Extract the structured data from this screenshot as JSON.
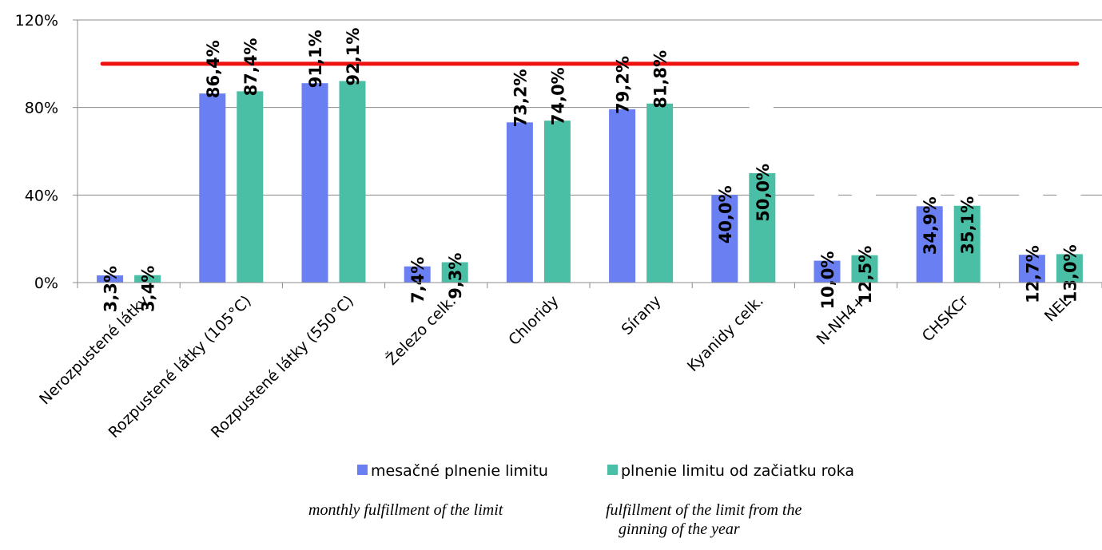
{
  "chart_data": {
    "type": "bar",
    "categories": [
      "Nerozpustené látky",
      "Rozpustené látky (105°C)",
      "Rozpustené látky (550°C)",
      "Železo celk.",
      "Chloridy",
      "Sírany",
      "Kyanidy celk.",
      "N-NH4+",
      "CHSKCr",
      "NEL"
    ],
    "series": [
      {
        "name": "mesačné plnenie limitu",
        "color": "#6A7FF2",
        "values": [
          3.3,
          86.4,
          91.1,
          7.4,
          73.2,
          79.2,
          40.0,
          10.0,
          34.9,
          12.7
        ],
        "labels": [
          "3,3%",
          "86,4%",
          "91,1%",
          "7,4%",
          "73,2%",
          "79,2%",
          "40,0%",
          "10,0%",
          "34,9%",
          "12,7%"
        ]
      },
      {
        "name": "plnenie limitu od začiatku roka",
        "color": "#4BBFA5",
        "values": [
          3.4,
          87.4,
          92.1,
          9.3,
          74.0,
          81.8,
          50.0,
          12.5,
          35.1,
          13.0
        ],
        "labels": [
          "3,4%",
          "87,4%",
          "92,1%",
          "9,3%",
          "74,0%",
          "81,8%",
          "50,0%",
          "12,5%",
          "35,1%",
          "13,0%"
        ]
      }
    ],
    "limit_line": {
      "value": 100,
      "color": "#EE1111"
    },
    "ylim": [
      0,
      120
    ],
    "yticks": [
      {
        "value": 0,
        "label": "0%"
      },
      {
        "value": 40,
        "label": "40%"
      },
      {
        "value": 80,
        "label": "80%"
      },
      {
        "value": 120,
        "label": "120%"
      }
    ],
    "grid": true,
    "legend_position": "bottom"
  },
  "notes": {
    "monthly": "monthly fulfillment of the limit",
    "ytd_line1": "fulfillment of the limit from the",
    "ytd_line2": "ginning of the year"
  }
}
